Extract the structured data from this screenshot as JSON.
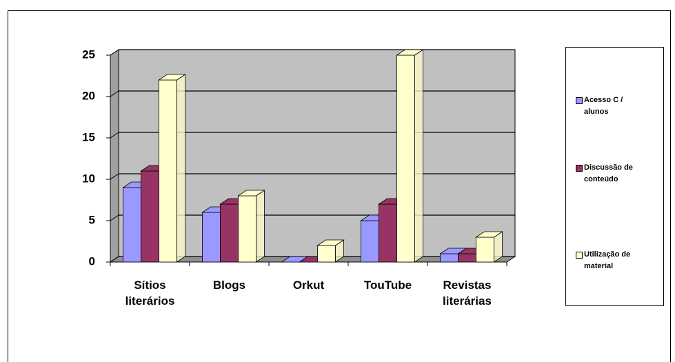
{
  "chart_data": {
    "type": "bar3d",
    "categories": [
      "Sítios literários",
      "Blogs",
      "Orkut",
      "TouTube",
      "Revistas literárias"
    ],
    "series": [
      {
        "name": "Acesso C / alunos",
        "color": "#9999ff",
        "values": [
          9,
          6,
          0,
          5,
          1
        ]
      },
      {
        "name": "Discussão de conteúdo",
        "color": "#993366",
        "values": [
          11,
          7,
          0,
          7,
          1
        ]
      },
      {
        "name": "Utilização de material",
        "color": "#ffffcc",
        "values": [
          22,
          8,
          2,
          25,
          3
        ]
      }
    ],
    "ylim": [
      0,
      25
    ],
    "yticks": [
      0,
      5,
      10,
      15,
      20,
      25
    ],
    "grid": true,
    "legend": "right"
  }
}
